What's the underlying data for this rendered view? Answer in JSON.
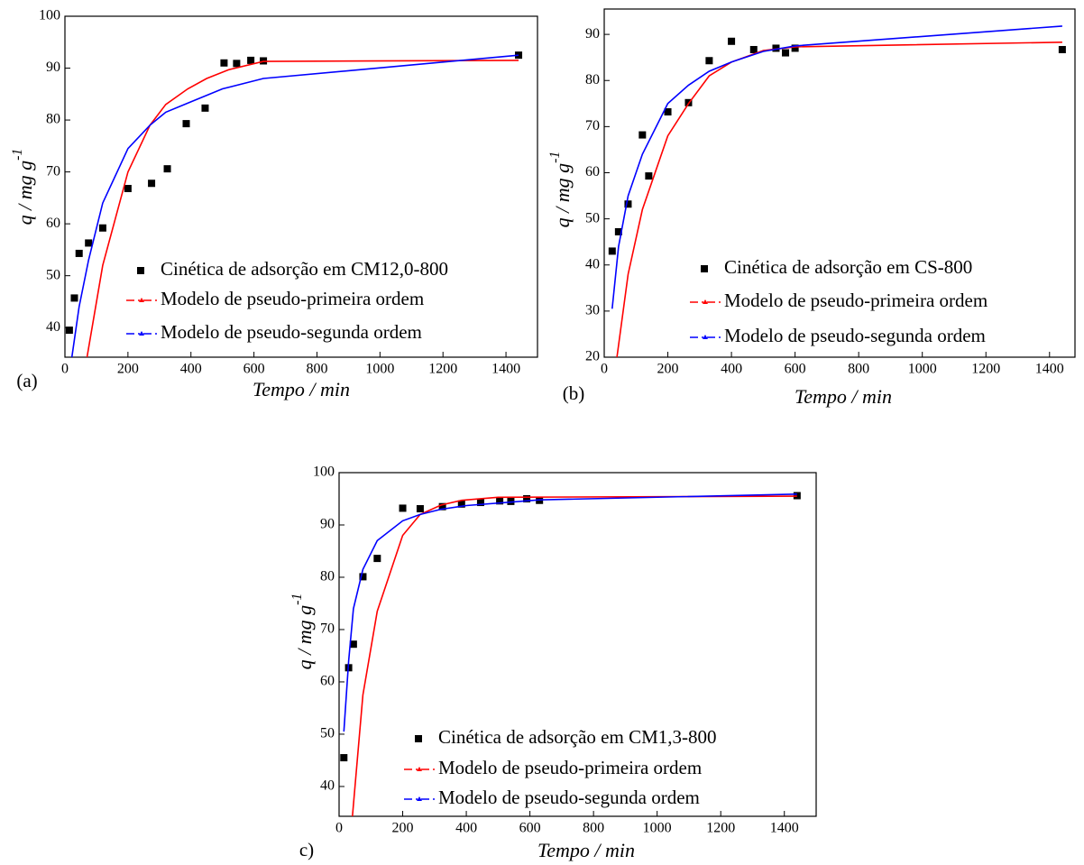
{
  "chart_data": [
    {
      "type": "scatter",
      "panel_label": "(a)",
      "xlabel": "Tempo / min",
      "ylabel": "q / mg g",
      "ylabel_sup": "-1",
      "xlim": [
        0,
        1500
      ],
      "ylim": [
        34.3,
        100
      ],
      "xticks": [
        0,
        200,
        400,
        600,
        800,
        1000,
        1200,
        1400
      ],
      "yticks": [
        40,
        50,
        60,
        70,
        80,
        90,
        100
      ],
      "series": [
        {
          "name": "Cinética de adsorção em CM12,0-800",
          "color": "#000000",
          "mode": "markers",
          "x": [
            14,
            30,
            45,
            75,
            120,
            200,
            275,
            325,
            385,
            445,
            505,
            545,
            590,
            630,
            1440
          ],
          "values": [
            39.5,
            45.7,
            54.3,
            56.3,
            59.2,
            66.8,
            67.8,
            70.6,
            79.3,
            82.3,
            91.0,
            90.9,
            91.5,
            91.4,
            92.5
          ]
        },
        {
          "name": "Modelo de pseudo-primeira ordem",
          "color": "#ff0000",
          "mode": "line",
          "x": [
            70,
            120,
            200,
            270,
            320,
            390,
            450,
            520,
            630,
            1440
          ],
          "values": [
            34.3,
            52,
            70,
            79,
            83,
            86,
            88,
            89.7,
            91.3,
            91.5
          ]
        },
        {
          "name": "Modelo de pseudo-segunda ordem",
          "color": "#0000ff",
          "mode": "line",
          "x": [
            22,
            45,
            75,
            120,
            200,
            270,
            320,
            400,
            500,
            630,
            1440
          ],
          "values": [
            34.3,
            44,
            53,
            64,
            74.5,
            79,
            81.5,
            83.5,
            86,
            88,
            92.5
          ]
        }
      ]
    },
    {
      "type": "scatter",
      "panel_label": "(b)",
      "xlabel": "Tempo / min",
      "ylabel": "q / mg g",
      "ylabel_sup": "-1",
      "xlim": [
        0,
        1480
      ],
      "ylim": [
        20,
        95.5
      ],
      "xticks": [
        0,
        200,
        400,
        600,
        800,
        1000,
        1200,
        1400
      ],
      "yticks": [
        20,
        30,
        40,
        50,
        60,
        70,
        80,
        90
      ],
      "series": [
        {
          "name": "Cinética de adsorção em CS-800",
          "color": "#000000",
          "mode": "markers",
          "x": [
            25,
            45,
            75,
            120,
            140,
            200,
            265,
            330,
            400,
            470,
            540,
            570,
            600,
            1440
          ],
          "values": [
            43,
            47.2,
            53.2,
            68.2,
            59.3,
            73.2,
            75.2,
            84.3,
            88.5,
            86.7,
            87,
            86,
            87,
            86.7
          ]
        },
        {
          "name": "Modelo de pseudo-primeira ordem",
          "color": "#ff0000",
          "mode": "line",
          "x": [
            40,
            75,
            120,
            200,
            265,
            330,
            400,
            500,
            600,
            1440
          ],
          "values": [
            20,
            38,
            52,
            68,
            75,
            81,
            84,
            86.5,
            87.3,
            88.3
          ]
        },
        {
          "name": "Modelo de pseudo-segunda ordem",
          "color": "#0000ff",
          "mode": "line",
          "x": [
            25,
            45,
            75,
            120,
            200,
            265,
            330,
            400,
            500,
            600,
            1440
          ],
          "values": [
            30.5,
            44,
            55,
            64,
            75,
            79,
            82,
            84,
            86.3,
            87.5,
            91.8
          ]
        }
      ]
    },
    {
      "type": "scatter",
      "panel_label": "c)",
      "xlabel": "Tempo / min",
      "ylabel": "q / mg g",
      "ylabel_sup": "-1",
      "xlim": [
        0,
        1500
      ],
      "ylim": [
        34.3,
        100
      ],
      "xticks": [
        0,
        200,
        400,
        600,
        800,
        1000,
        1200,
        1400
      ],
      "yticks": [
        40,
        50,
        60,
        70,
        80,
        90,
        100
      ],
      "series": [
        {
          "name": "Cinética de adsorção em CM1,3-800",
          "color": "#000000",
          "mode": "markers",
          "x": [
            15,
            30,
            45,
            75,
            120,
            200,
            255,
            325,
            385,
            445,
            505,
            540,
            590,
            630,
            1440
          ],
          "values": [
            45.5,
            62.7,
            67.2,
            80.1,
            83.6,
            93.2,
            93.1,
            93.5,
            94,
            94.3,
            94.6,
            94.5,
            95,
            94.7,
            95.6
          ]
        },
        {
          "name": "Modelo de pseudo-primeira ordem",
          "color": "#ff0000",
          "mode": "line",
          "x": [
            42,
            75,
            120,
            200,
            255,
            320,
            385,
            500,
            1440
          ],
          "values": [
            34.3,
            57.5,
            73.5,
            88,
            92,
            93.8,
            94.7,
            95.3,
            95.5
          ]
        },
        {
          "name": "Modelo de pseudo-segunda ordem",
          "color": "#0000ff",
          "mode": "line",
          "x": [
            15,
            30,
            45,
            75,
            120,
            200,
            255,
            320,
            400,
            630,
            1440
          ],
          "values": [
            50.5,
            64,
            74,
            81.5,
            87,
            90.8,
            92,
            93,
            93.7,
            94.8,
            95.9
          ]
        }
      ]
    }
  ]
}
